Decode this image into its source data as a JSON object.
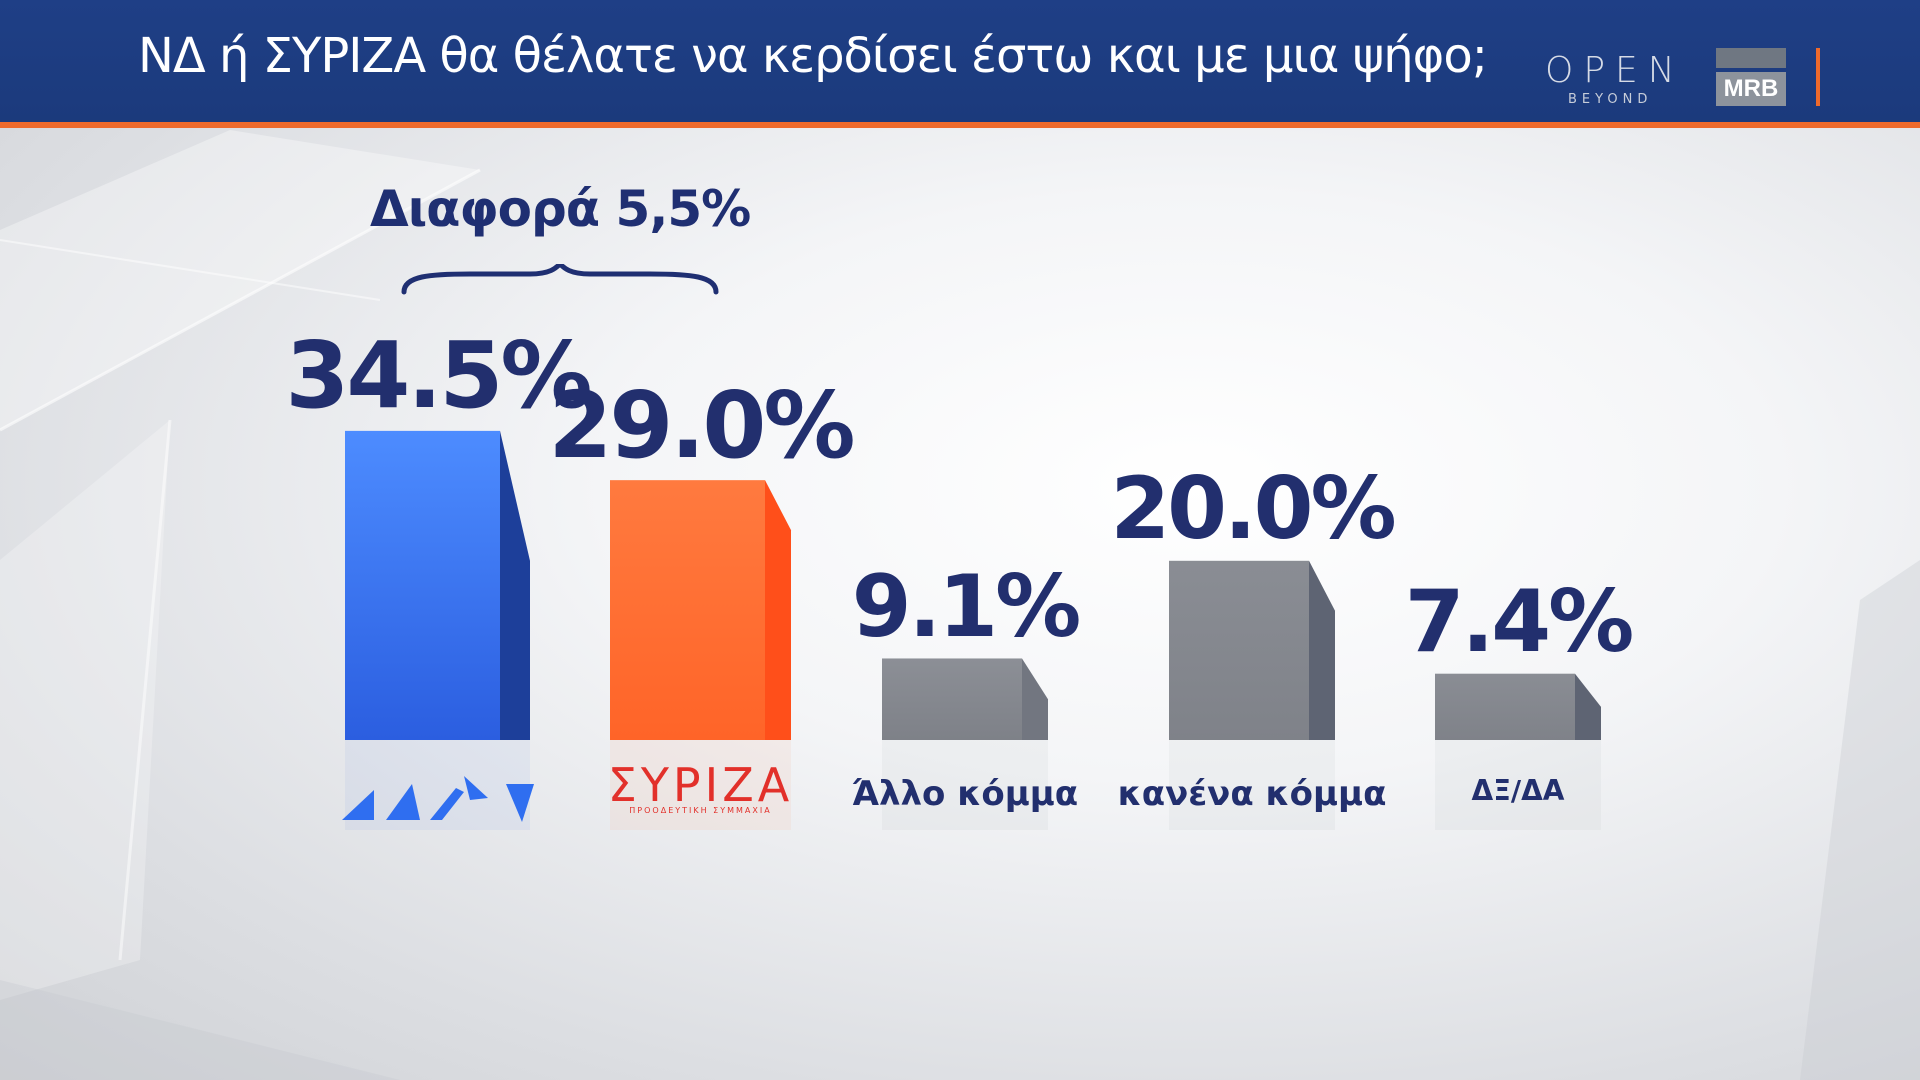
{
  "header": {
    "title": "ΝΔ  ή ΣΥΡΙΖΑ θα θέλατε να κερδίσει έστω και με μια ψήφο;",
    "logo_open": "OPEN",
    "logo_open_sub": "BEYOND",
    "logo_mrb": "MRB"
  },
  "annotation": {
    "diff_label": "Διαφορά 5,5%"
  },
  "colors": {
    "header_bg": "#1b3a7c",
    "accent": "#ee6a2c",
    "nd_blue": "#2f6ef0",
    "syriza_orange": "#ff6a32",
    "gray": "#878a92",
    "label": "#222f6e"
  },
  "icons": {
    "nd": "nd-logo-icon",
    "syriza": "syriza-logo-icon"
  },
  "chart_data": {
    "type": "bar",
    "title": "ΝΔ  ή ΣΥΡΙΖΑ θα θέλατε να κερδίσει έστω και με μια ψήφο;",
    "categories": [
      "ΝΔ",
      "ΣΥΡΙΖΑ",
      "Άλλο κόμμα",
      "κανένα κόμμα",
      "ΔΞ/ΔΑ"
    ],
    "values": [
      34.5,
      29.0,
      9.1,
      20.0,
      7.4
    ],
    "value_labels": [
      "34.5%",
      "29.0%",
      "9.1%",
      "20.0%",
      "7.4%"
    ],
    "category_labels": [
      "",
      "",
      "Άλλο κόμμα",
      "κανένα κόμμα",
      "ΔΞ/ΔΑ"
    ],
    "syriza_logo_text": "ΣΥΡΙΖΑ",
    "syriza_logo_sub": "ΠΡΟΟΔΕΥΤΙΚΗ ΣΥΜΜΑΧΙΑ",
    "unit": "%",
    "grid": false,
    "legend": "none"
  }
}
